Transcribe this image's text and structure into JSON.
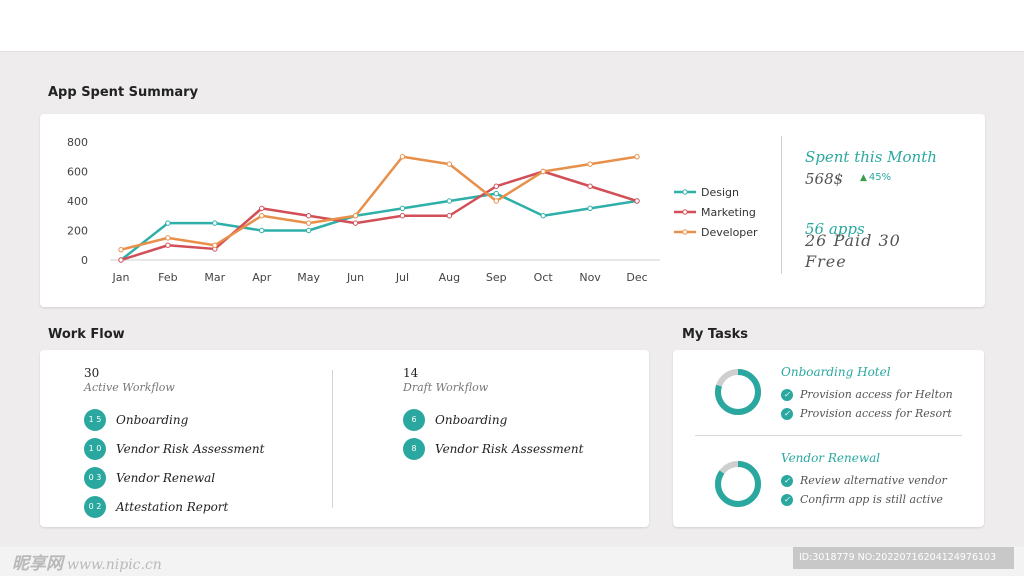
{
  "sections": {
    "summary_title": "App Spent Summary",
    "workflow_title": "Work Flow",
    "tasks_title": "My Tasks"
  },
  "chart_data": {
    "type": "line",
    "categories": [
      "Jan",
      "Feb",
      "Mar",
      "Apr",
      "May",
      "Jun",
      "Jul",
      "Aug",
      "Sep",
      "Oct",
      "Nov",
      "Dec"
    ],
    "ylim": [
      0,
      800
    ],
    "yticks": [
      0,
      200,
      400,
      600,
      800
    ],
    "grid": false,
    "legend_position": "right",
    "series": [
      {
        "name": "Design",
        "color": "#2eb0a8",
        "values": [
          0,
          250,
          250,
          200,
          200,
          300,
          350,
          400,
          450,
          300,
          350,
          400
        ]
      },
      {
        "name": "Marketing",
        "color": "#d24f57",
        "values": [
          0,
          100,
          75,
          350,
          300,
          250,
          300,
          300,
          500,
          600,
          500,
          400
        ]
      },
      {
        "name": "Developer",
        "color": "#e8904a",
        "values": [
          70,
          150,
          100,
          300,
          250,
          300,
          700,
          650,
          400,
          600,
          650,
          700
        ]
      }
    ]
  },
  "stats": {
    "spent_title": "Spent this Month",
    "spent_amount": "568$",
    "spent_change": "45%",
    "apps_label": "56 apps",
    "apps_detail": "26 Paid 30 Free"
  },
  "workflow": {
    "active": {
      "count": "30",
      "label": "Active Workflow",
      "items": [
        {
          "badge": "1 5",
          "label": "Onboarding"
        },
        {
          "badge": "1 0",
          "label": "Vendor Risk Assessment"
        },
        {
          "badge": "0 3",
          "label": "Vendor Renewal"
        },
        {
          "badge": "0 2",
          "label": "Attestation Report"
        }
      ]
    },
    "draft": {
      "count": "14",
      "label": "Draft Workflow",
      "items": [
        {
          "badge": "6",
          "label": "Onboarding"
        },
        {
          "badge": "8",
          "label": "Vendor Risk Assessment"
        }
      ]
    }
  },
  "tasks": [
    {
      "title": "Onboarding Hotel",
      "progress": 0.8,
      "items": [
        "Provision access for Helton",
        "Provision access for Resort"
      ]
    },
    {
      "title": "Vendor Renewal",
      "progress": 0.85,
      "items": [
        "Review alternative vendor",
        "Confirm app is still active"
      ]
    }
  ],
  "colors": {
    "accent": "#2aa8a0",
    "donut_track": "#cfcfcf"
  },
  "watermark": {
    "left_brand": "昵享网",
    "left_url": "www.nipic.cn",
    "right": "ID:3018779 NO:20220716204124976103"
  }
}
